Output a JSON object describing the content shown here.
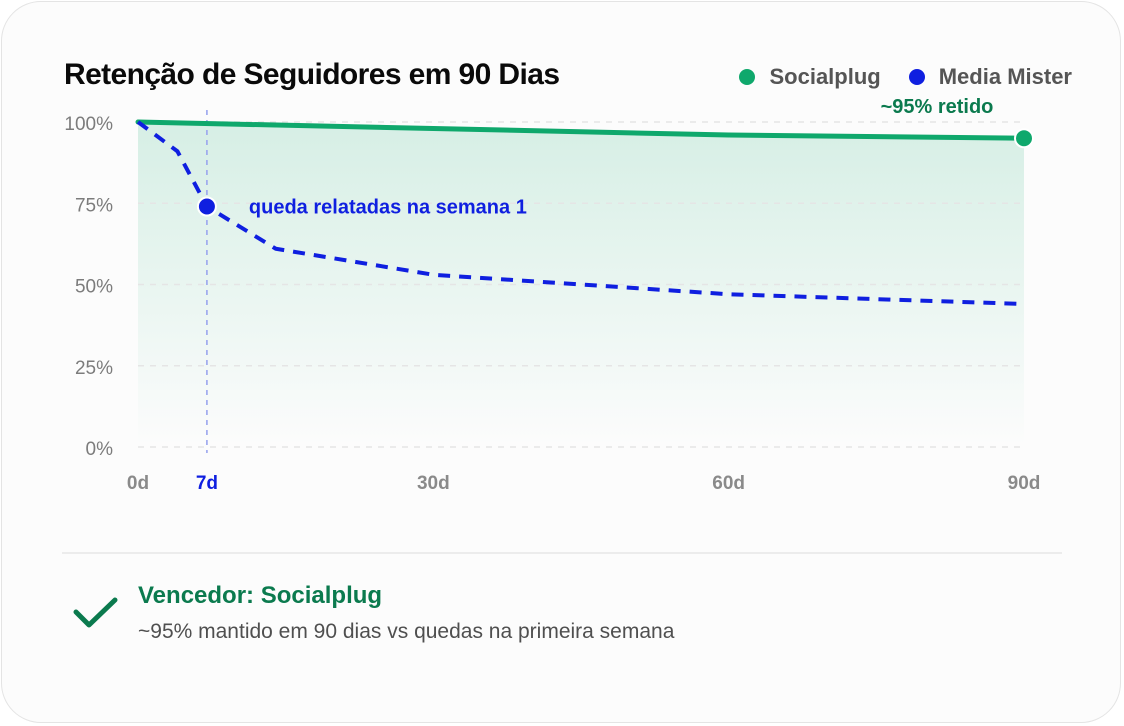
{
  "title": "Retenção de Seguidores em 90 Dias",
  "legend": [
    {
      "name": "Socialplug",
      "color": "#0fa86c"
    },
    {
      "name": "Media Mister",
      "color": "#0f1fe0"
    }
  ],
  "chart_data": {
    "type": "line",
    "title": "Retenção de Seguidores em 90 Dias",
    "xlabel": "",
    "ylabel": "",
    "x_ticks": [
      {
        "x": 0,
        "label": "0d"
      },
      {
        "x": 7,
        "label": "7d",
        "highlight": true
      },
      {
        "x": 30,
        "label": "30d"
      },
      {
        "x": 60,
        "label": "60d"
      },
      {
        "x": 90,
        "label": "90d"
      }
    ],
    "y_ticks": [
      {
        "y": 100,
        "label": "100%"
      },
      {
        "y": 75,
        "label": "75%"
      },
      {
        "y": 50,
        "label": "50%"
      },
      {
        "y": 25,
        "label": "25%"
      },
      {
        "y": 0,
        "label": "0%"
      }
    ],
    "xlim": [
      0,
      90
    ],
    "ylim": [
      0,
      100
    ],
    "grid": true,
    "legend_position": "top-right",
    "series": [
      {
        "name": "Socialplug",
        "color": "#0fa86c",
        "style": "solid",
        "area_fill": true,
        "x": [
          0,
          30,
          60,
          90
        ],
        "y": [
          100,
          98,
          96,
          95
        ]
      },
      {
        "name": "Media Mister",
        "color": "#0f1fe0",
        "style": "dashed",
        "x": [
          0,
          4,
          7,
          14,
          30,
          60,
          90
        ],
        "y": [
          100,
          91,
          74,
          61,
          53,
          47,
          44
        ]
      }
    ],
    "vline": {
      "x": 7,
      "color": "#9aa5ee"
    },
    "annotations": [
      {
        "text": "queda relatadas na semana 1",
        "series": "Media Mister",
        "x": 7,
        "y": 74,
        "color": "#0f1fe0"
      },
      {
        "text": "~95% retido",
        "series": "Socialplug",
        "x": 90,
        "y": 95,
        "color": "#0b7a4e"
      }
    ]
  },
  "summary": {
    "icon": "check-icon",
    "title": "Vencedor: Socialplug",
    "subtitle": "~95% mantido em 90 dias vs quedas na primeira semana"
  }
}
